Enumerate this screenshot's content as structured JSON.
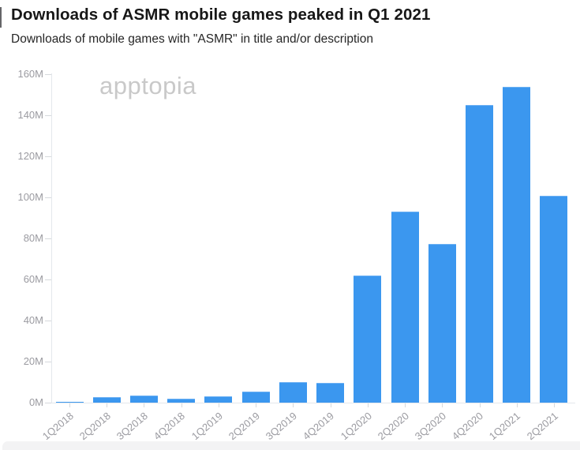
{
  "page": {
    "title": "Downloads of ASMR mobile games peaked in Q1 2021",
    "subtitle": "Downloads of mobile games with \"ASMR\" in title and/or description"
  },
  "watermark": {
    "text": "apptopia",
    "icon": "apptopia-clover-icon",
    "petal_colors": {
      "blue": "#b3d1f2",
      "pink": "#f6c6d0",
      "green": "#bfe9cf",
      "lavender": "#d9cef3"
    },
    "text_color": "#c9c9c9"
  },
  "chart_data": {
    "type": "bar",
    "title": "Downloads of ASMR mobile games peaked in Q1 2021",
    "subtitle": "Downloads of mobile games with \"ASMR\" in title and/or description",
    "categories": [
      "1Q2018",
      "2Q2018",
      "3Q2018",
      "4Q2018",
      "1Q2019",
      "2Q2019",
      "3Q2019",
      "4Q2019",
      "1Q2020",
      "2Q2020",
      "3Q2020",
      "4Q2020",
      "1Q2021",
      "2Q2021"
    ],
    "values": [
      0.4,
      2.8,
      3.5,
      2.1,
      3,
      5.5,
      10.2,
      9.6,
      62,
      93,
      77.5,
      145,
      154,
      101
    ],
    "unit": "M",
    "xlabel": "",
    "ylabel": "",
    "ylim": [
      0,
      160
    ],
    "ytick_step": 20,
    "ytick_suffix": "M",
    "grid": false,
    "legend": false,
    "bar_color": "#3b97ef",
    "bar_top_edge_color": "#6db1f3",
    "axis_line_color": "#e4e8ec",
    "tick_color": "#d6d9dc",
    "axis_label_color": "#9b9ba1"
  }
}
